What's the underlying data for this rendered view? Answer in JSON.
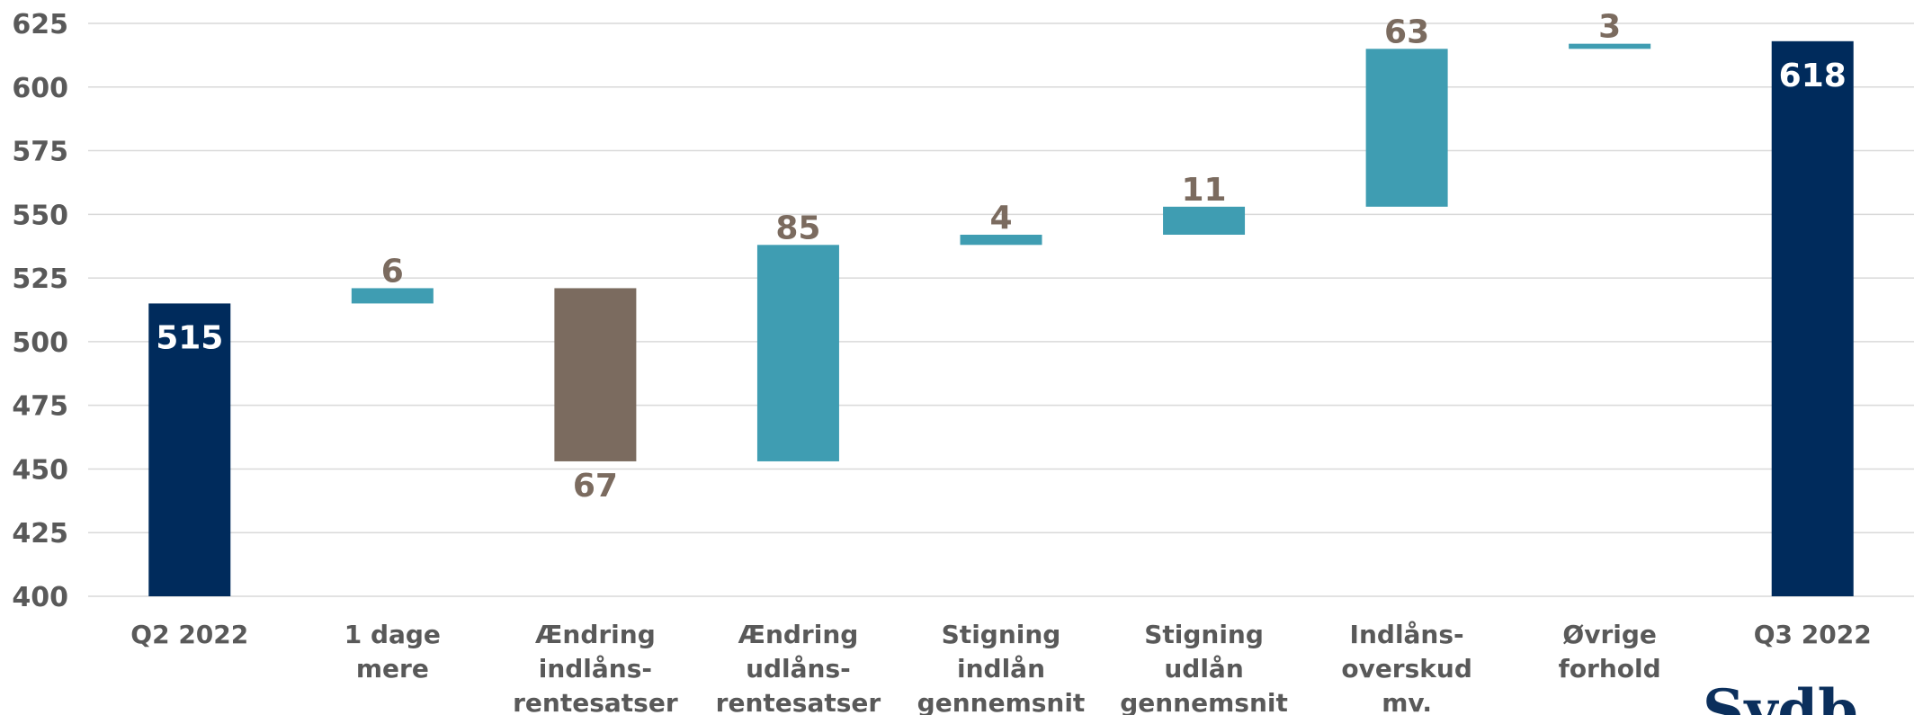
{
  "chart_data": {
    "type": "waterfall",
    "ylim": [
      400,
      625
    ],
    "yticks": [
      400,
      425,
      450,
      475,
      500,
      525,
      550,
      575,
      600,
      625
    ],
    "grid": true,
    "categories": [
      [
        "Q2 2022"
      ],
      [
        "1 dage",
        "mere"
      ],
      [
        "Ændring",
        "indlåns-",
        "rentesatser"
      ],
      [
        "Ændring",
        "udlåns-",
        "rentesatser"
      ],
      [
        "Stigning",
        "indlån",
        "gennemsnit"
      ],
      [
        "Stigning",
        "udlån",
        "gennemsnit"
      ],
      [
        "Indlåns-",
        "overskud",
        "mv."
      ],
      [
        "Øvrige",
        "forhold"
      ],
      [
        "Q3 2022"
      ]
    ],
    "bars": [
      {
        "kind": "total",
        "start": 400,
        "end": 515,
        "label": "515",
        "label_pos": "inside-top"
      },
      {
        "kind": "increase",
        "start": 515,
        "end": 521,
        "label": "6",
        "label_pos": "above"
      },
      {
        "kind": "decrease",
        "start": 521,
        "end": 453,
        "label": "67",
        "label_pos": "below"
      },
      {
        "kind": "increase",
        "start": 453,
        "end": 538,
        "label": "85",
        "label_pos": "above"
      },
      {
        "kind": "increase",
        "start": 538,
        "end": 542,
        "label": "4",
        "label_pos": "above"
      },
      {
        "kind": "increase",
        "start": 542,
        "end": 553,
        "label": "11",
        "label_pos": "above"
      },
      {
        "kind": "increase",
        "start": 553,
        "end": 615,
        "label": "63",
        "label_pos": "above"
      },
      {
        "kind": "increase",
        "start": 615,
        "end": 617,
        "label": "3",
        "label_pos": "above"
      },
      {
        "kind": "total",
        "start": 400,
        "end": 618,
        "label": "618",
        "label_pos": "inside-top"
      }
    ]
  },
  "colors": {
    "total": "#002b5c",
    "increase": "#3f9db2",
    "decrease": "#7b6b5f",
    "total_label": "#ffffff",
    "delta_label": "#7b6b5f",
    "grid": "#d9d9d9",
    "axis_text": "#595959"
  },
  "logo": {
    "text": "Sydb"
  }
}
